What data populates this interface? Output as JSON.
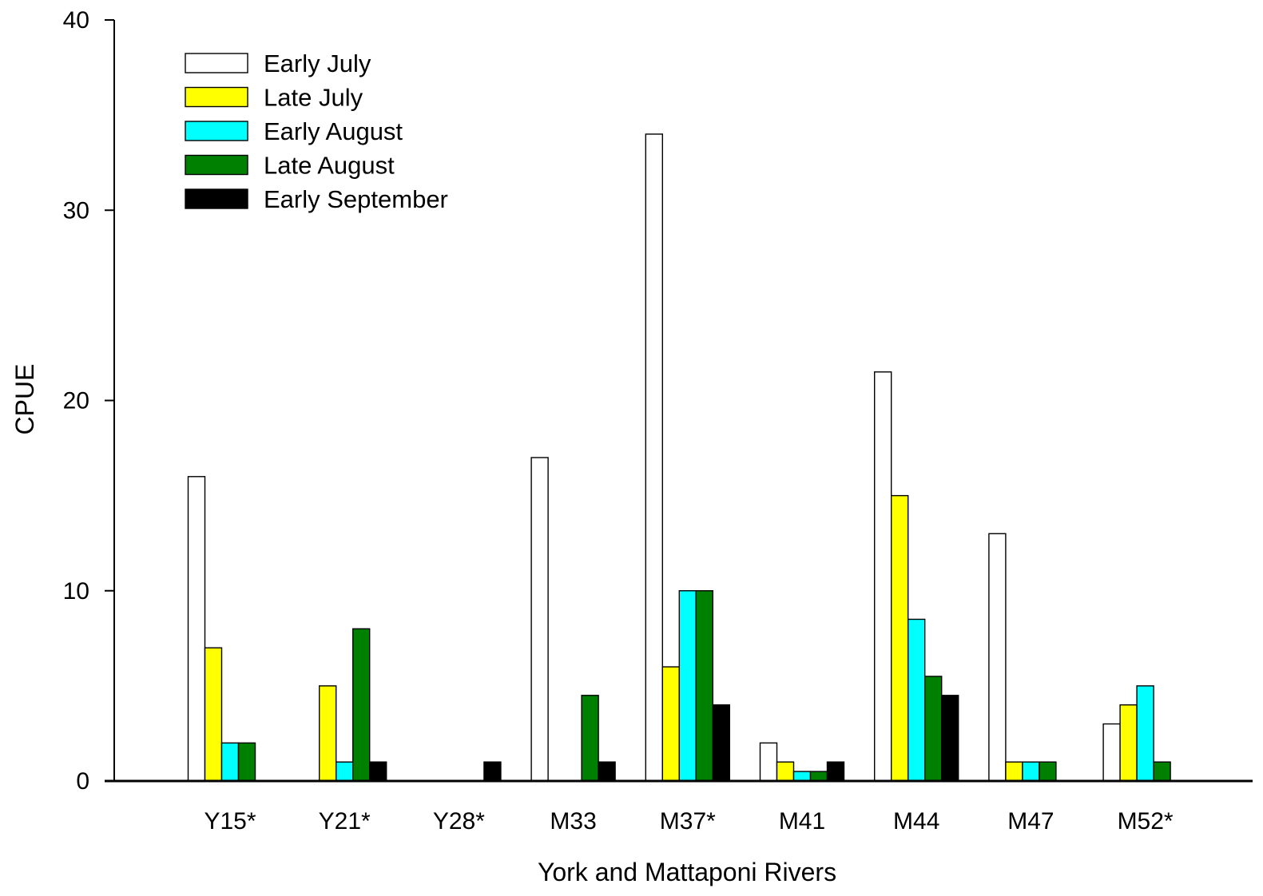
{
  "chart_data": {
    "type": "bar",
    "xlabel": "York and Mattaponi Rivers",
    "ylabel": "CPUE",
    "ylim": [
      0,
      40
    ],
    "yticks": [
      0,
      10,
      20,
      30,
      40
    ],
    "grid": false,
    "legend_position": "top-left",
    "categories": [
      "Y15*",
      "Y21*",
      "Y28*",
      "M33",
      "M37*",
      "M41",
      "M44",
      "M47",
      "M52*"
    ],
    "series": [
      {
        "name": "Early July",
        "color": "#ffffff",
        "values": [
          16,
          0,
          0,
          17,
          34,
          2,
          21.5,
          13,
          3
        ]
      },
      {
        "name": "Late July",
        "color": "#ffff00",
        "values": [
          7,
          5,
          0,
          0,
          6,
          1,
          15,
          1,
          4
        ]
      },
      {
        "name": "Early August",
        "color": "#00ffff",
        "values": [
          2,
          1,
          0,
          0,
          10,
          0.5,
          8.5,
          1,
          5
        ]
      },
      {
        "name": "Late August",
        "color": "#008000",
        "values": [
          2,
          8,
          0,
          4.5,
          10,
          0.5,
          5.5,
          1,
          1
        ]
      },
      {
        "name": "Early September",
        "color": "#000000",
        "values": [
          0,
          1,
          1,
          1,
          4,
          1,
          4.5,
          0,
          0
        ]
      }
    ]
  }
}
